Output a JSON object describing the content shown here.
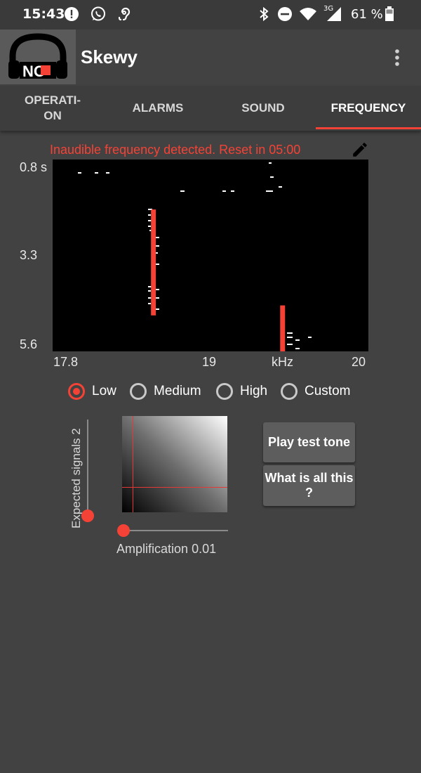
{
  "status_bar": {
    "time": "15:43",
    "battery_percent": "61 %",
    "network_type": "3G",
    "notification_icons": [
      "alert-icon",
      "whatsapp-icon",
      "hearing-icon"
    ],
    "system_icons": [
      "bluetooth-icon",
      "do-not-disturb-icon",
      "wifi-icon",
      "cellular-signal-icon",
      "battery-icon"
    ]
  },
  "app_bar": {
    "logo_text": "NO",
    "title": "Skewy",
    "menu_icon": "more-vert-icon"
  },
  "tabs": [
    {
      "label": "OPERATI-\nON",
      "active": false
    },
    {
      "label": "ALARMS",
      "active": false
    },
    {
      "label": "SOUND",
      "active": false
    },
    {
      "label": "FREQUENCY",
      "active": true
    }
  ],
  "warning": {
    "text": "Inaudible frequency detected. Reset in  05:00",
    "color": "#f44336",
    "edit_icon": "edit-icon"
  },
  "spectrogram": {
    "y_ticks": [
      "0.8 s",
      "3.3",
      "5.6"
    ],
    "x_ticks": [
      "17.8",
      "19",
      "kHz",
      "20"
    ],
    "x_range_khz": [
      17.8,
      20
    ],
    "y_range_s": [
      0.8,
      5.6
    ],
    "detections": [
      {
        "freq_khz": 18.5,
        "time_start_s": 2.05,
        "time_end_s": 4.7,
        "color": "#f44336"
      },
      {
        "freq_khz": 19.4,
        "time_start_s": 4.45,
        "time_end_s": 5.6,
        "color": "#f44336"
      }
    ],
    "signal_color": "#ffffff"
  },
  "sensitivity": {
    "options": [
      "Low",
      "Medium",
      "High",
      "Custom"
    ],
    "selected": "Low"
  },
  "expected_signals": {
    "label": "Expected signals",
    "value": "2"
  },
  "amplification": {
    "label": "Amplification",
    "value": "0.01"
  },
  "buttons": {
    "play_test_tone": "Play test tone",
    "what_is_all_this": "What is all this ?"
  },
  "colors": {
    "accent": "#f44336",
    "background": "#424242",
    "button": "#5d5d5d"
  }
}
